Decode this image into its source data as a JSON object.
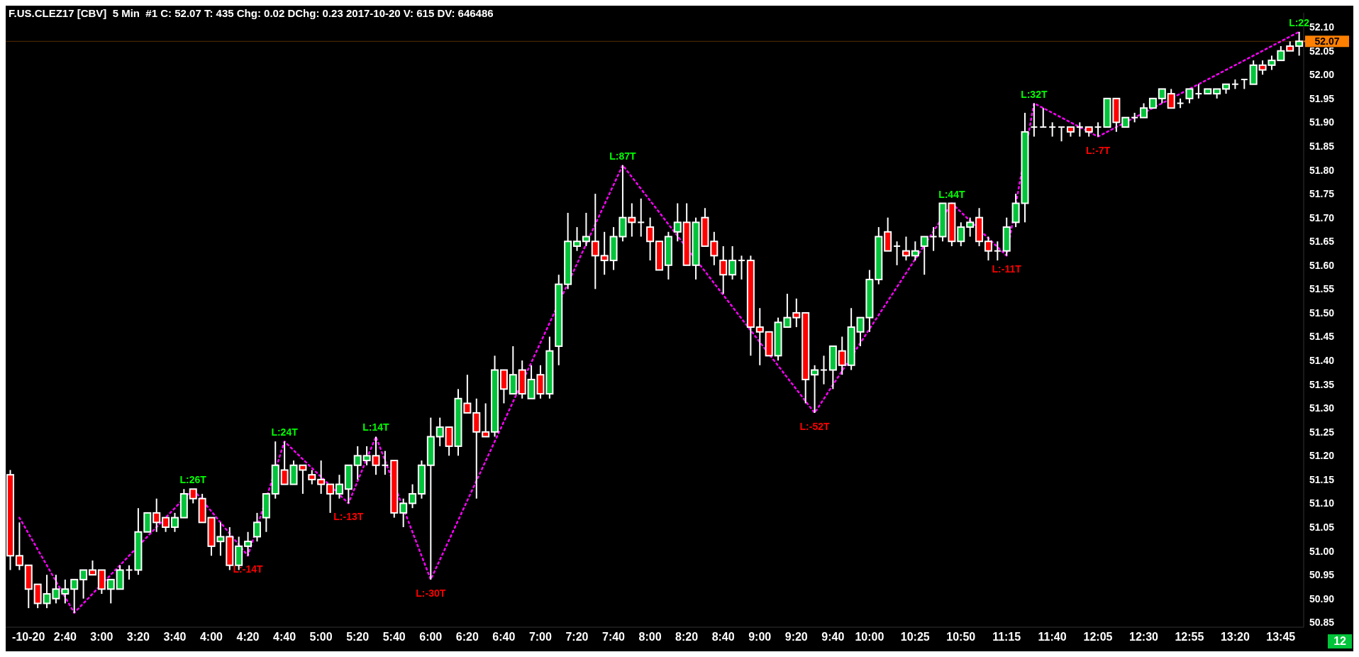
{
  "chart_data": {
    "type": "candlestick",
    "title": "F.US.CLEZ17 [CBV]  5 Min  #1 C: 52.07 T: 435 Chg: 0.02 DChg: 0.23 2017-10-20 V: 615 DV: 646486",
    "categories": [
      null,
      null,
      "-10-20",
      null,
      null,
      null,
      "2:40",
      null,
      null,
      null,
      "3:00",
      null,
      null,
      null,
      "3:20",
      null,
      null,
      null,
      "3:40",
      null,
      null,
      null,
      "4:00",
      null,
      null,
      null,
      "4:20",
      null,
      null,
      null,
      "4:40",
      null,
      null,
      null,
      "5:00",
      null,
      null,
      null,
      "5:20",
      null,
      null,
      null,
      "5:40",
      null,
      null,
      null,
      "6:00",
      null,
      null,
      null,
      "6:20",
      null,
      null,
      null,
      "6:40",
      null,
      null,
      null,
      "7:00",
      null,
      null,
      null,
      "7:20",
      null,
      null,
      null,
      "7:40",
      null,
      null,
      null,
      "8:00",
      null,
      null,
      null,
      "8:20",
      null,
      null,
      null,
      "8:40",
      null,
      null,
      null,
      "9:00",
      null,
      null,
      null,
      "9:20",
      null,
      null,
      null,
      "9:40",
      null,
      null,
      null,
      "10:00",
      null,
      null,
      null,
      null,
      "10:25",
      null,
      null,
      null,
      null,
      "10:50",
      null,
      null,
      null,
      null,
      "11:15",
      null,
      null,
      null,
      null,
      "11:40",
      null,
      null,
      null,
      null,
      "12:05",
      null,
      null,
      null,
      null,
      "12:30",
      null,
      null,
      null,
      null,
      "12:55",
      null,
      null,
      null,
      null,
      "13:20",
      null,
      null,
      null,
      null,
      "13:45",
      null,
      null
    ],
    "ohlc": [
      [
        51.16,
        51.17,
        50.96,
        50.99
      ],
      [
        50.99,
        51.06,
        50.96,
        50.97
      ],
      [
        50.97,
        50.97,
        50.88,
        50.92
      ],
      [
        50.93,
        50.93,
        50.88,
        50.89
      ],
      [
        50.89,
        50.95,
        50.88,
        50.91
      ],
      [
        50.9,
        50.95,
        50.89,
        50.92
      ],
      [
        50.91,
        50.94,
        50.89,
        50.92
      ],
      [
        50.92,
        50.94,
        50.87,
        50.94
      ],
      [
        50.94,
        50.96,
        50.9,
        50.96
      ],
      [
        50.96,
        50.98,
        50.95,
        50.95
      ],
      [
        50.96,
        50.96,
        50.91,
        50.92
      ],
      [
        50.92,
        50.94,
        50.89,
        50.94
      ],
      [
        50.92,
        50.97,
        50.92,
        50.96
      ],
      [
        50.96,
        50.97,
        50.94,
        50.96
      ],
      [
        50.96,
        51.09,
        50.95,
        51.04
      ],
      [
        51.04,
        51.08,
        51.04,
        51.08
      ],
      [
        51.08,
        51.11,
        51.04,
        51.06
      ],
      [
        51.07,
        51.07,
        51.04,
        51.05
      ],
      [
        51.05,
        51.08,
        51.04,
        51.07
      ],
      [
        51.07,
        51.13,
        51.07,
        51.12
      ],
      [
        51.13,
        51.13,
        51.1,
        51.11
      ],
      [
        51.11,
        51.12,
        51.06,
        51.06
      ],
      [
        51.07,
        51.07,
        50.99,
        51.01
      ],
      [
        51.02,
        51.06,
        50.99,
        51.03
      ],
      [
        51.03,
        51.05,
        50.96,
        50.97
      ],
      [
        50.97,
        51.03,
        50.96,
        51.01
      ],
      [
        51.01,
        51.04,
        50.99,
        51.02
      ],
      [
        51.03,
        51.08,
        51.02,
        51.06
      ],
      [
        51.07,
        51.12,
        51.04,
        51.12
      ],
      [
        51.12,
        51.23,
        51.11,
        51.18
      ],
      [
        51.17,
        51.23,
        51.14,
        51.14
      ],
      [
        51.14,
        51.19,
        51.14,
        51.18
      ],
      [
        51.18,
        51.18,
        51.12,
        51.17
      ],
      [
        51.16,
        51.17,
        51.14,
        51.15
      ],
      [
        51.15,
        51.19,
        51.12,
        51.14
      ],
      [
        51.14,
        51.14,
        51.08,
        51.12
      ],
      [
        51.12,
        51.16,
        51.11,
        51.14
      ],
      [
        51.13,
        51.18,
        51.1,
        51.18
      ],
      [
        51.18,
        51.22,
        51.15,
        51.2
      ],
      [
        51.19,
        51.22,
        51.18,
        51.2
      ],
      [
        51.2,
        51.24,
        51.16,
        51.18
      ],
      [
        51.18,
        51.21,
        51.16,
        51.18
      ],
      [
        51.19,
        51.19,
        51.07,
        51.08
      ],
      [
        51.08,
        51.11,
        51.05,
        51.1
      ],
      [
        51.1,
        51.14,
        51.09,
        51.12
      ],
      [
        51.12,
        51.19,
        51.11,
        51.18
      ],
      [
        51.18,
        51.28,
        50.94,
        51.24
      ],
      [
        51.24,
        51.28,
        51.22,
        51.26
      ],
      [
        51.26,
        51.26,
        51.2,
        51.22
      ],
      [
        51.22,
        51.34,
        51.2,
        51.32
      ],
      [
        51.31,
        51.37,
        51.29,
        51.29
      ],
      [
        51.29,
        51.32,
        51.11,
        51.25
      ],
      [
        51.25,
        51.31,
        51.24,
        51.24
      ],
      [
        51.25,
        51.41,
        51.24,
        51.38
      ],
      [
        51.38,
        51.38,
        51.31,
        51.34
      ],
      [
        51.33,
        51.43,
        51.33,
        51.37
      ],
      [
        51.38,
        51.4,
        51.32,
        51.33
      ],
      [
        51.32,
        51.39,
        51.32,
        51.36
      ],
      [
        51.37,
        51.39,
        51.32,
        51.33
      ],
      [
        51.33,
        51.45,
        51.32,
        51.42
      ],
      [
        51.43,
        51.58,
        51.39,
        51.56
      ],
      [
        51.56,
        51.71,
        51.55,
        51.65
      ],
      [
        51.64,
        51.68,
        51.63,
        51.65
      ],
      [
        51.65,
        51.71,
        51.64,
        51.66
      ],
      [
        51.65,
        51.75,
        51.55,
        51.62
      ],
      [
        51.62,
        51.67,
        51.58,
        51.61
      ],
      [
        51.61,
        51.68,
        51.59,
        51.66
      ],
      [
        51.66,
        51.81,
        51.65,
        51.7
      ],
      [
        51.7,
        51.73,
        51.66,
        51.69
      ],
      [
        51.69,
        51.74,
        51.66,
        51.69
      ],
      [
        51.68,
        51.7,
        51.61,
        51.65
      ],
      [
        51.65,
        51.65,
        51.59,
        51.59
      ],
      [
        51.6,
        51.67,
        51.57,
        51.66
      ],
      [
        51.67,
        51.73,
        51.65,
        51.69
      ],
      [
        51.69,
        51.73,
        51.6,
        51.6
      ],
      [
        51.6,
        51.7,
        51.57,
        51.69
      ],
      [
        51.7,
        51.72,
        51.64,
        51.64
      ],
      [
        51.65,
        51.67,
        51.6,
        51.62
      ],
      [
        51.61,
        51.64,
        51.54,
        51.58
      ],
      [
        51.58,
        51.64,
        51.57,
        51.61
      ],
      [
        51.61,
        51.62,
        51.57,
        51.61
      ],
      [
        51.61,
        51.62,
        51.41,
        51.47
      ],
      [
        51.47,
        51.51,
        51.39,
        51.46
      ],
      [
        51.46,
        51.46,
        51.41,
        51.41
      ],
      [
        51.41,
        51.49,
        51.4,
        51.48
      ],
      [
        51.47,
        51.54,
        51.47,
        51.49
      ],
      [
        51.5,
        51.53,
        51.47,
        51.49
      ],
      [
        51.5,
        51.5,
        51.31,
        51.36
      ],
      [
        51.37,
        51.39,
        51.29,
        51.38
      ],
      [
        51.38,
        51.41,
        51.35,
        51.38
      ],
      [
        51.38,
        51.43,
        51.34,
        51.43
      ],
      [
        51.42,
        51.45,
        51.37,
        51.39
      ],
      [
        51.39,
        51.51,
        51.38,
        51.47
      ],
      [
        51.46,
        51.49,
        51.43,
        51.49
      ],
      [
        51.49,
        51.59,
        51.46,
        51.57
      ],
      [
        51.57,
        51.68,
        51.56,
        51.66
      ],
      [
        51.67,
        51.7,
        51.63,
        51.63
      ],
      [
        51.64,
        51.65,
        51.6,
        51.64
      ],
      [
        51.63,
        51.66,
        51.61,
        51.62
      ],
      [
        51.62,
        51.65,
        51.61,
        51.63
      ],
      [
        51.64,
        51.66,
        51.58,
        51.66
      ],
      [
        51.66,
        51.68,
        51.63,
        51.66
      ],
      [
        51.66,
        51.73,
        51.65,
        51.73
      ],
      [
        51.73,
        51.73,
        51.64,
        51.65
      ],
      [
        51.65,
        51.69,
        51.64,
        51.68
      ],
      [
        51.68,
        51.7,
        51.66,
        51.69
      ],
      [
        51.7,
        51.72,
        51.64,
        51.65
      ],
      [
        51.65,
        51.66,
        51.61,
        51.63
      ],
      [
        51.63,
        51.65,
        51.61,
        51.63
      ],
      [
        51.63,
        51.7,
        51.62,
        51.68
      ],
      [
        51.69,
        51.75,
        51.68,
        51.73
      ],
      [
        51.73,
        51.92,
        51.69,
        51.88
      ],
      [
        51.89,
        51.94,
        51.87,
        51.89
      ],
      [
        51.89,
        51.93,
        51.89,
        51.89
      ],
      [
        51.89,
        51.9,
        51.87,
        51.89
      ],
      [
        51.89,
        51.89,
        51.86,
        51.89
      ],
      [
        51.89,
        51.89,
        51.87,
        51.88
      ],
      [
        51.89,
        51.9,
        51.87,
        51.89
      ],
      [
        51.89,
        51.89,
        51.87,
        51.88
      ],
      [
        51.89,
        51.9,
        51.87,
        51.89
      ],
      [
        51.89,
        51.95,
        51.89,
        51.95
      ],
      [
        51.95,
        51.95,
        51.88,
        51.9
      ],
      [
        51.89,
        51.91,
        51.89,
        51.91
      ],
      [
        51.91,
        51.92,
        51.9,
        51.91
      ],
      [
        51.91,
        51.94,
        51.91,
        51.93
      ],
      [
        51.93,
        51.95,
        51.93,
        51.95
      ],
      [
        51.95,
        51.97,
        51.94,
        51.97
      ],
      [
        51.96,
        51.97,
        51.93,
        51.93
      ],
      [
        51.94,
        51.95,
        51.93,
        51.94
      ],
      [
        51.95,
        51.97,
        51.94,
        51.97
      ],
      [
        51.96,
        51.98,
        51.95,
        51.96
      ],
      [
        51.96,
        51.97,
        51.96,
        51.97
      ],
      [
        51.96,
        51.97,
        51.95,
        51.97
      ],
      [
        51.97,
        51.98,
        51.96,
        51.98
      ],
      [
        51.98,
        51.99,
        51.97,
        51.98
      ],
      [
        51.99,
        51.99,
        51.97,
        51.99
      ],
      [
        51.98,
        52.03,
        51.98,
        52.02
      ],
      [
        52.02,
        52.03,
        52.0,
        52.01
      ],
      [
        52.02,
        52.04,
        52.01,
        52.03
      ],
      [
        52.03,
        52.06,
        52.03,
        52.05
      ],
      [
        52.06,
        52.07,
        52.05,
        52.05
      ],
      [
        52.06,
        52.09,
        52.04,
        52.07
      ]
    ],
    "colors": [
      "#ff0000",
      "#ff0000",
      "#ff0000",
      "#ff0000",
      "#00c43a",
      "#00c43a",
      "#00c43a",
      "#00c43a",
      "#00c43a",
      "#ff0000",
      "#ff0000",
      "#00c43a",
      "#00c43a",
      "#ffffff",
      "#00c43a",
      "#00c43a",
      "#ff0000",
      "#ff0000",
      "#00c43a",
      "#00c43a",
      "#ff0000",
      "#ff0000",
      "#ff0000",
      "#00c43a",
      "#ff0000",
      "#00c43a",
      "#00c43a",
      "#00c43a",
      "#00c43a",
      "#00c43a",
      "#ff0000",
      "#00c43a",
      "#ff0000",
      "#ff0000",
      "#ff0000",
      "#ff0000",
      "#00c43a",
      "#00c43a",
      "#00c43a",
      "#00c43a",
      "#ff0000",
      "#ffffff",
      "#ff0000",
      "#00c43a",
      "#00c43a",
      "#00c43a",
      "#00c43a",
      "#00c43a",
      "#ff0000",
      "#00c43a",
      "#ff0000",
      "#ff0000",
      "#ff0000",
      "#00c43a",
      "#ff0000",
      "#00c43a",
      "#ff0000",
      "#00c43a",
      "#ff0000",
      "#00c43a",
      "#00c43a",
      "#00c43a",
      "#00c43a",
      "#00c43a",
      "#ff0000",
      "#ff0000",
      "#00c43a",
      "#00c43a",
      "#ff0000",
      "#ffffff",
      "#ff0000",
      "#ff0000",
      "#00c43a",
      "#00c43a",
      "#ff0000",
      "#00c43a",
      "#ff0000",
      "#ff0000",
      "#ff0000",
      "#00c43a",
      "#ffffff",
      "#ff0000",
      "#ff0000",
      "#ff0000",
      "#00c43a",
      "#00c43a",
      "#ff0000",
      "#ff0000",
      "#00c43a",
      "#ffffff",
      "#00c43a",
      "#ff0000",
      "#00c43a",
      "#00c43a",
      "#00c43a",
      "#00c43a",
      "#ff0000",
      "#ffffff",
      "#ff0000",
      "#00c43a",
      "#00c43a",
      "#ffffff",
      "#00c43a",
      "#ff0000",
      "#00c43a",
      "#00c43a",
      "#ff0000",
      "#ff0000",
      "#ffffff",
      "#00c43a",
      "#00c43a",
      "#00c43a",
      "#ffffff",
      "#ffffff",
      "#ffffff",
      "#ffffff",
      "#ff0000",
      "#ffffff",
      "#ff0000",
      "#ffffff",
      "#00c43a",
      "#ff0000",
      "#00c43a",
      "#ffffff",
      "#00c43a",
      "#00c43a",
      "#00c43a",
      "#ff0000",
      "#ffffff",
      "#00c43a",
      "#ffffff",
      "#00c43a",
      "#00c43a",
      "#00c43a",
      "#ffffff",
      "#ffffff",
      "#00c43a",
      "#ff0000",
      "#00c43a",
      "#00c43a",
      "#ff0000",
      "#00c43a"
    ],
    "series": [
      {
        "type": "line",
        "color": "#ff00ff",
        "line_style": "dotted",
        "values": [
          null,
          51.07,
          null,
          null,
          null,
          null,
          null,
          50.87,
          null,
          null,
          null,
          null,
          null,
          null,
          null,
          null,
          null,
          null,
          null,
          null,
          51.13,
          null,
          null,
          null,
          null,
          null,
          50.99,
          null,
          null,
          null,
          51.23,
          null,
          null,
          null,
          null,
          null,
          null,
          51.1,
          null,
          null,
          51.24,
          null,
          null,
          null,
          null,
          null,
          50.94,
          null,
          null,
          null,
          null,
          null,
          null,
          null,
          null,
          null,
          null,
          null,
          null,
          null,
          null,
          null,
          null,
          null,
          null,
          null,
          null,
          51.81,
          null,
          null,
          null,
          null,
          null,
          null,
          null,
          null,
          null,
          null,
          null,
          null,
          null,
          null,
          null,
          null,
          null,
          null,
          null,
          null,
          51.29,
          null,
          null,
          null,
          null,
          null,
          null,
          null,
          null,
          null,
          null,
          null,
          null,
          null,
          null,
          51.73,
          null,
          null,
          null,
          null,
          null,
          51.62,
          null,
          null,
          51.94,
          null,
          null,
          null,
          null,
          null,
          null,
          51.87,
          null,
          null,
          null,
          null,
          null,
          null,
          null,
          null,
          null,
          null,
          null,
          null,
          null,
          null,
          null,
          null,
          null,
          null,
          null,
          null,
          null,
          52.09
        ]
      }
    ],
    "annotations": [
      {
        "text": "L:26T",
        "y": 51.13
      },
      {
        "text": "L:-14T",
        "y": 50.99
      },
      {
        "text": "L:24T",
        "y": 51.23
      },
      {
        "text": "L:-13T",
        "y": 51.1
      },
      {
        "text": "L:14T",
        "y": 51.24
      },
      {
        "text": "L:-30T",
        "y": 50.94
      },
      {
        "text": "L:87T",
        "y": 51.81
      },
      {
        "text": "L:-52T",
        "y": 51.29
      },
      {
        "text": "L:44T",
        "y": 51.73
      },
      {
        "text": "L:-11T",
        "y": 51.62
      },
      {
        "text": "L:32T",
        "y": 51.94
      },
      {
        "text": "L:-7T",
        "y": 51.87
      },
      {
        "text": "L:22",
        "y": 52.09
      },
      "12"
    ],
    "ylim": [
      50.84,
      52.13
    ],
    "yticks": [
      {
        "value": 50.85,
        "label": "50.85"
      },
      {
        "value": 50.9,
        "label": "50.90"
      },
      {
        "value": 50.95,
        "label": "50.95"
      },
      {
        "value": 51,
        "label": "51.00"
      },
      {
        "value": 51.05,
        "label": "51.05"
      },
      {
        "value": 51.1,
        "label": "51.10"
      },
      {
        "value": 51.15,
        "label": "51.15"
      },
      {
        "value": 51.2,
        "label": "51.20"
      },
      {
        "value": 51.25,
        "label": "51.25"
      },
      {
        "value": 51.3,
        "label": "51.30"
      },
      {
        "value": 51.35,
        "label": "51.35"
      },
      {
        "value": 51.4,
        "label": "51.40"
      },
      {
        "value": 51.45,
        "label": "51.45"
      },
      {
        "value": 51.5,
        "label": "51.50"
      },
      {
        "value": 51.55,
        "label": "51.55"
      },
      {
        "value": 51.6,
        "label": "51.60"
      },
      {
        "value": 51.65,
        "label": "51.65"
      },
      {
        "value": 51.7,
        "label": "51.70"
      },
      {
        "value": 51.75,
        "label": "51.75"
      },
      {
        "value": 51.8,
        "label": "51.80"
      },
      {
        "value": 51.85,
        "label": "51.85"
      },
      {
        "value": 51.9,
        "label": "51.90"
      },
      {
        "value": 51.95,
        "label": "51.95"
      },
      {
        "value": 52,
        "label": "52.00"
      },
      {
        "value": 52.05,
        "label": "52.05"
      },
      {
        "value": 52.1,
        "label": "52.10"
      }
    ],
    "ref_lines": [
      {
        "axis": "y",
        "value": 52.07,
        "label": "52.07",
        "color": "#ff8000"
      }
    ]
  }
}
